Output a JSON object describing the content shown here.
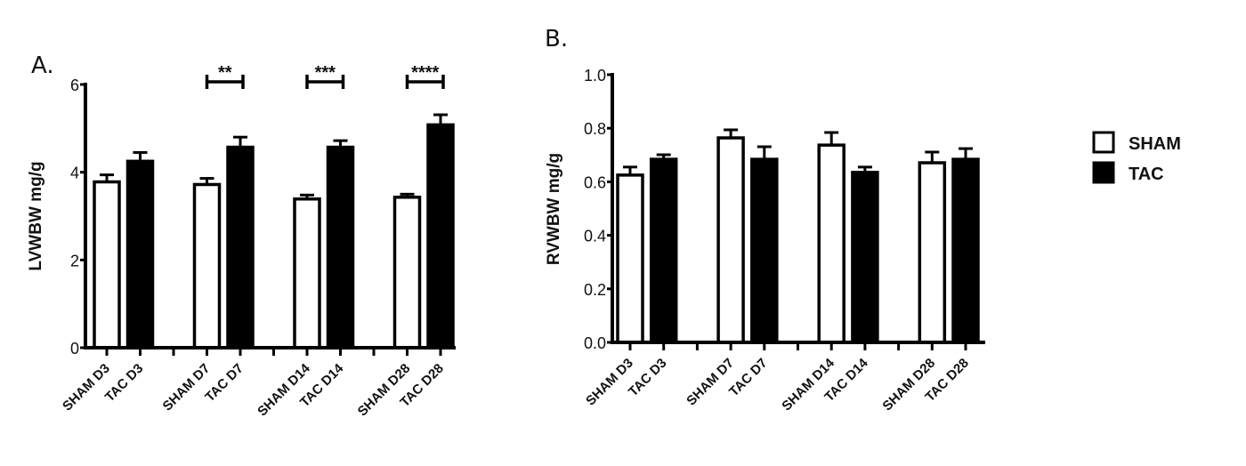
{
  "colors": {
    "sham": "#ffffff",
    "tac": "#000000",
    "stroke": "#000000"
  },
  "legend": [
    {
      "name": "SHAM",
      "fill": "#ffffff"
    },
    {
      "name": "TAC",
      "fill": "#000000"
    }
  ],
  "chart_data": [
    {
      "type": "bar",
      "panel_label": "A.",
      "ylabel": "LVWBW  mg/g",
      "xlabel": "",
      "ylim": [
        0,
        6
      ],
      "yticks": [
        "0",
        "2",
        "4",
        "6"
      ],
      "ytick_values": [
        0,
        2,
        4,
        6
      ],
      "categories": [
        "SHAM D3",
        "TAC D3",
        "SHAM D7",
        "TAC D7",
        "SHAM D14",
        "TAC D14",
        "SHAM D28",
        "TAC D28"
      ],
      "groups": [
        "SHAM",
        "TAC",
        "SHAM",
        "TAC",
        "SHAM",
        "TAC",
        "SHAM",
        "TAC"
      ],
      "values": [
        3.78,
        4.25,
        3.72,
        4.57,
        3.39,
        4.57,
        3.43,
        5.08
      ],
      "errors": [
        0.16,
        0.2,
        0.14,
        0.23,
        0.09,
        0.15,
        0.07,
        0.23
      ],
      "significance": [
        {
          "from": 2,
          "to": 3,
          "label": "**"
        },
        {
          "from": 4,
          "to": 5,
          "label": "***"
        },
        {
          "from": 6,
          "to": 7,
          "label": "****"
        }
      ]
    },
    {
      "type": "bar",
      "panel_label": "B.",
      "ylabel": "RVWBW  mg/g",
      "xlabel": "",
      "ylim": [
        0,
        1.0
      ],
      "yticks": [
        "0.0",
        "0.2",
        "0.4",
        "0.6",
        "0.8",
        "1.0"
      ],
      "ytick_values": [
        0,
        0.2,
        0.4,
        0.6,
        0.8,
        1.0
      ],
      "categories": [
        "SHAM D3",
        "TAC D3",
        "SHAM D7",
        "TAC D7",
        "SHAM D14",
        "TAC D14",
        "SHAM D28",
        "TAC D28"
      ],
      "groups": [
        "SHAM",
        "TAC",
        "SHAM",
        "TAC",
        "SHAM",
        "TAC",
        "SHAM",
        "TAC"
      ],
      "values": [
        0.625,
        0.684,
        0.764,
        0.684,
        0.737,
        0.635,
        0.671,
        0.684
      ],
      "errors": [
        0.03,
        0.017,
        0.03,
        0.047,
        0.047,
        0.02,
        0.04,
        0.04
      ],
      "significance": []
    }
  ]
}
